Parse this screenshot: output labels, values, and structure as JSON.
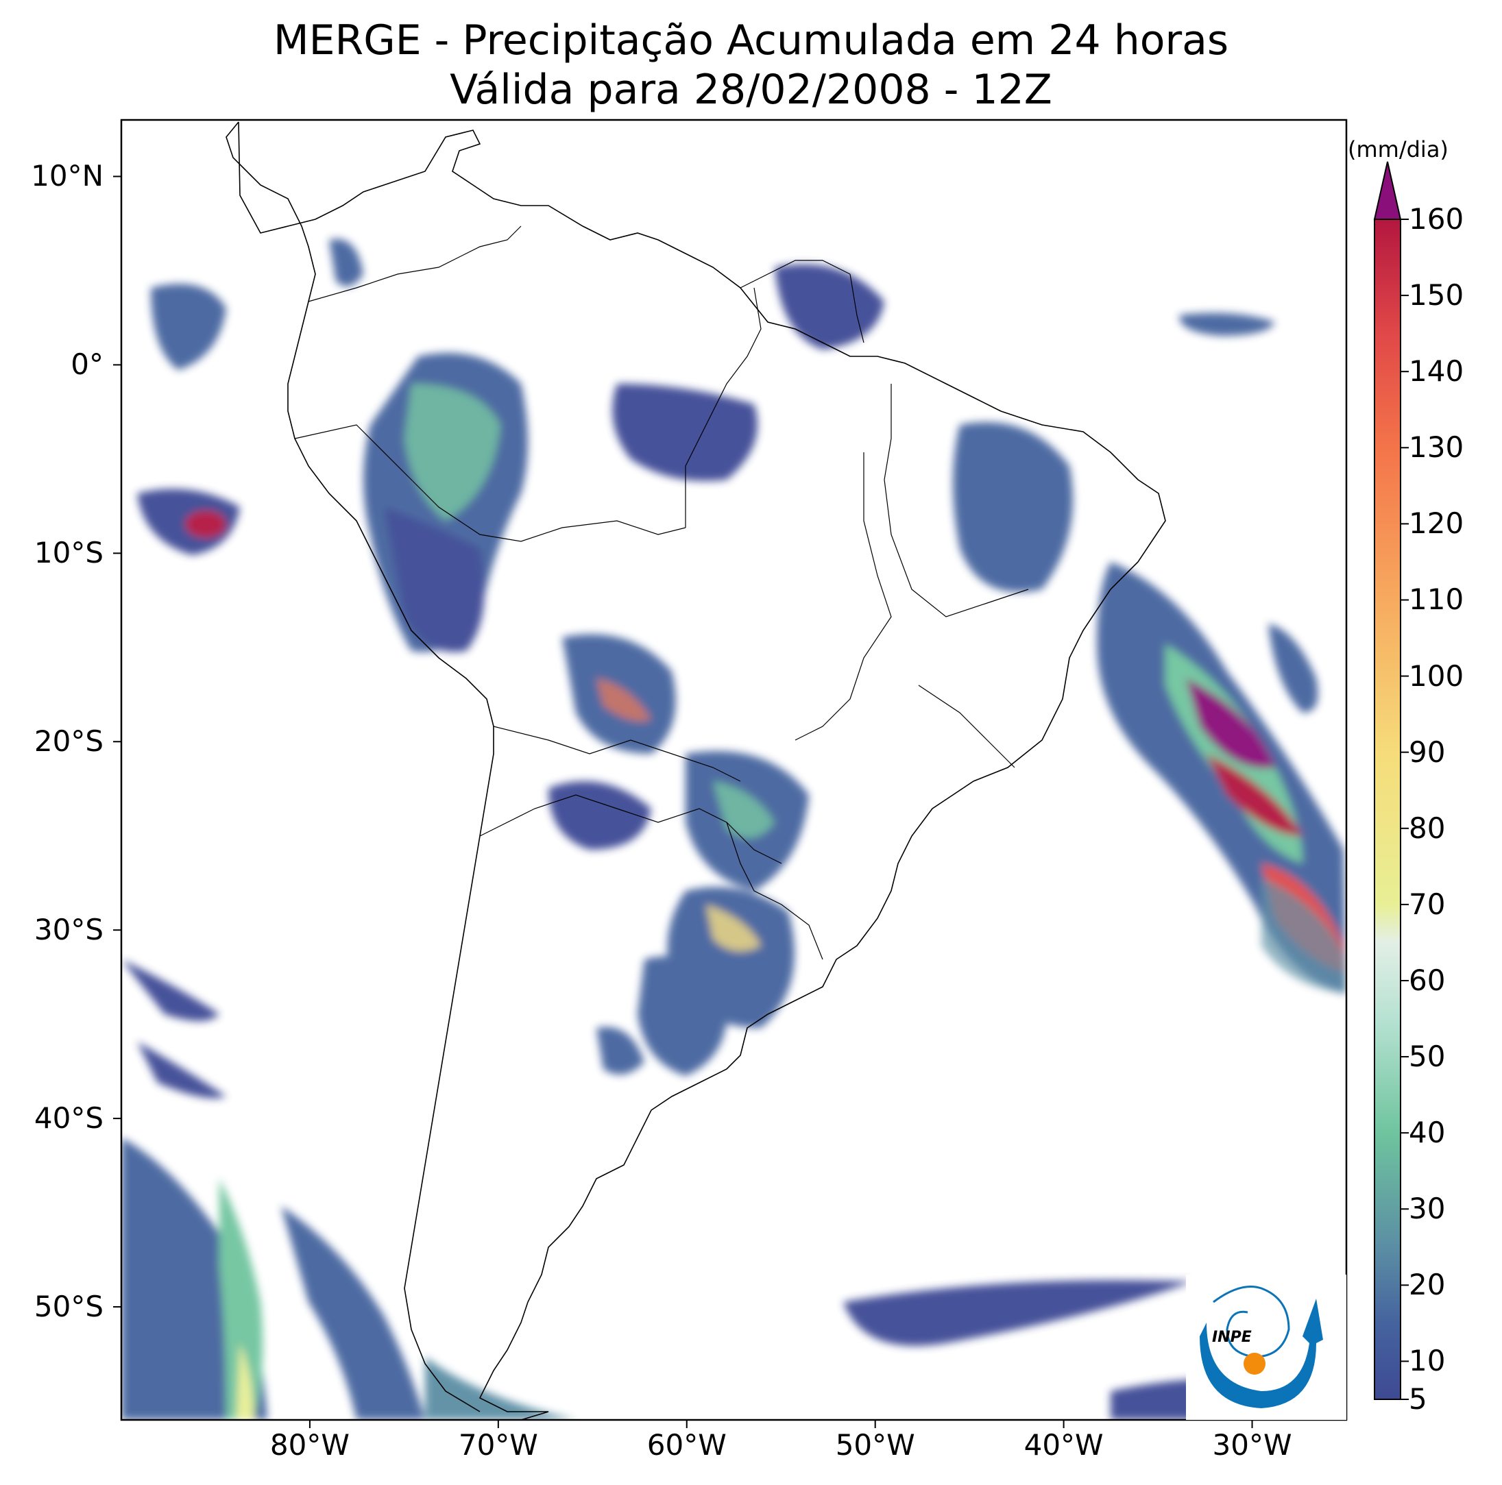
{
  "title": {
    "line1": "MERGE - Precipitação Acumulada em 24 horas",
    "line2": "Válida para 28/02/2008 - 12Z"
  },
  "map": {
    "extent": {
      "lon_min": -90,
      "lon_max": -25,
      "lat_min": -56,
      "lat_max": 13
    },
    "lat_ticks": [
      {
        "value": 10,
        "label": "10°N"
      },
      {
        "value": 0,
        "label": "0°"
      },
      {
        "value": -10,
        "label": "10°S"
      },
      {
        "value": -20,
        "label": "20°S"
      },
      {
        "value": -30,
        "label": "30°S"
      },
      {
        "value": -40,
        "label": "40°S"
      },
      {
        "value": -50,
        "label": "50°S"
      }
    ],
    "lon_ticks": [
      {
        "value": -80,
        "label": "80°W"
      },
      {
        "value": -70,
        "label": "70°W"
      },
      {
        "value": -60,
        "label": "60°W"
      },
      {
        "value": -50,
        "label": "50°W"
      },
      {
        "value": -40,
        "label": "40°W"
      },
      {
        "value": -30,
        "label": "30°W"
      }
    ]
  },
  "colorbar": {
    "unit": "(mm/dia)",
    "min": 5,
    "max": 160,
    "labels": [
      "5",
      "10",
      "20",
      "30",
      "40",
      "50",
      "60",
      "70",
      "80",
      "90",
      "100",
      "110",
      "120",
      "130",
      "140",
      "150",
      "160"
    ],
    "stops": [
      {
        "value": 5,
        "color": "#3e4a94"
      },
      {
        "value": 15,
        "color": "#45639e"
      },
      {
        "value": 25,
        "color": "#5b8ea4"
      },
      {
        "value": 40,
        "color": "#6fc49e"
      },
      {
        "value": 55,
        "color": "#b7e2d3"
      },
      {
        "value": 65,
        "color": "#e3efe6"
      },
      {
        "value": 70,
        "color": "#e8ef95"
      },
      {
        "value": 90,
        "color": "#f6dc7a"
      },
      {
        "value": 110,
        "color": "#f7aa5f"
      },
      {
        "value": 130,
        "color": "#f4744a"
      },
      {
        "value": 145,
        "color": "#e04848"
      },
      {
        "value": 160,
        "color": "#b3173f"
      }
    ],
    "extend_color": "#8b0f7a"
  },
  "logo": {
    "text": "INPE",
    "colors": {
      "blue": "#0b74b8",
      "orange": "#f28c0a"
    }
  }
}
